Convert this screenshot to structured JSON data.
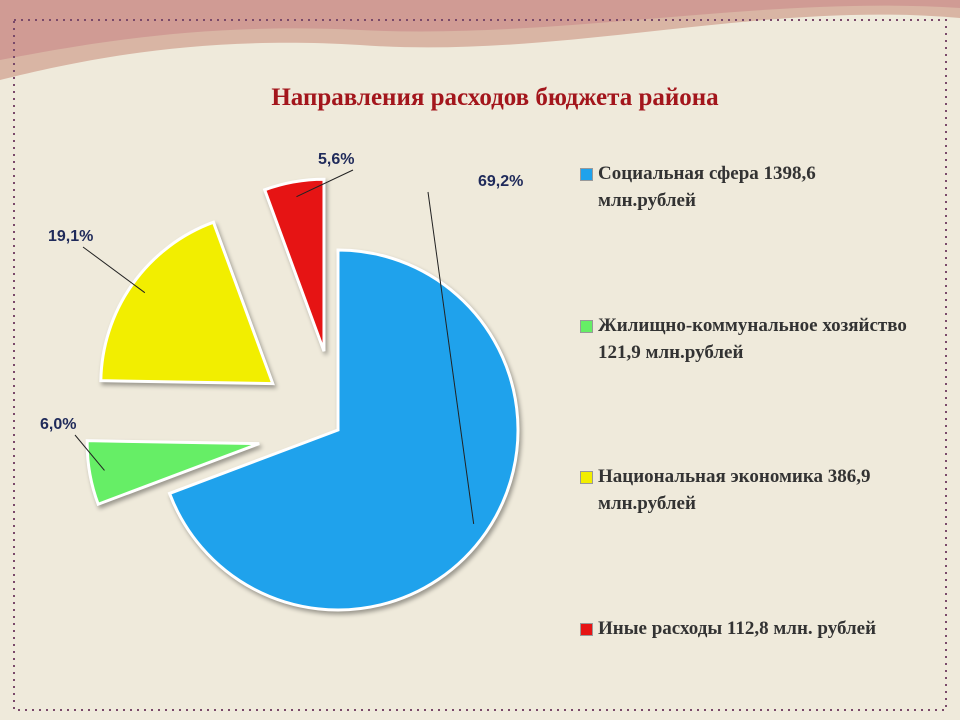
{
  "chart_data": {
    "type": "pie",
    "title": "Направления расходов бюджета района",
    "categories": [
      "Социальная сфера 1398,6 млн.рублей",
      "Жилищно-коммунальное хозяйство 121,9 млн.рублей",
      "Национальная экономика 386,9 млн.рублей",
      "Иные расходы 112,8 млн. рублей"
    ],
    "values": [
      69.2,
      6.0,
      19.1,
      5.6
    ],
    "value_labels": [
      "69,2%",
      "6,0%",
      "19,1%",
      "5,6%"
    ],
    "colors": [
      "#1fa2ec",
      "#66ee66",
      "#f2ee00",
      "#e61414"
    ]
  }
}
